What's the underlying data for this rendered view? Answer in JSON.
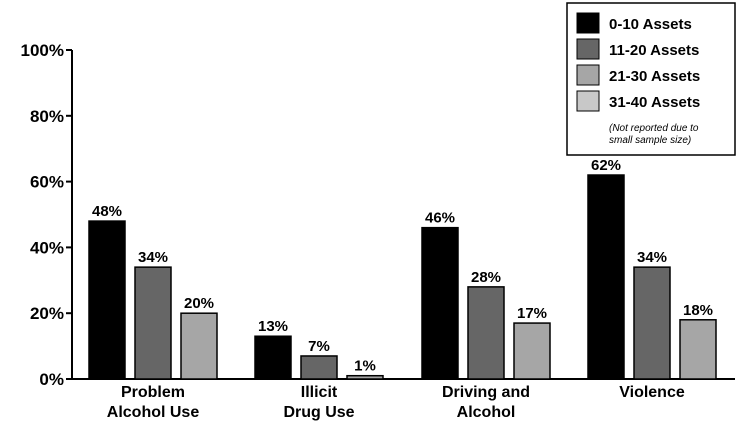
{
  "chart_data": {
    "type": "bar",
    "categories": [
      [
        "Problem",
        "Alcohol Use"
      ],
      [
        "Illicit",
        "Drug Use"
      ],
      [
        "Driving and",
        "Alcohol"
      ],
      [
        "Violence"
      ]
    ],
    "series": [
      {
        "name": "0-10 Assets",
        "color": "#000000",
        "values": [
          48,
          13,
          46,
          62
        ]
      },
      {
        "name": "11-20 Assets",
        "color": "#666666",
        "values": [
          34,
          7,
          28,
          34
        ]
      },
      {
        "name": "21-30 Assets",
        "color": "#a6a6a6",
        "values": [
          20,
          1,
          17,
          18
        ]
      }
    ],
    "legend_extra": {
      "name": "31-40 Assets",
      "color": "#c8c8c8",
      "note": [
        "(Not reported due to",
        "small sample size)"
      ]
    },
    "yticks": [
      "0%",
      "20%",
      "40%",
      "60%",
      "80%",
      "100%"
    ],
    "ylim": [
      0,
      100
    ],
    "value_suffix": "%",
    "legend_position": "top-right",
    "grid": false
  }
}
